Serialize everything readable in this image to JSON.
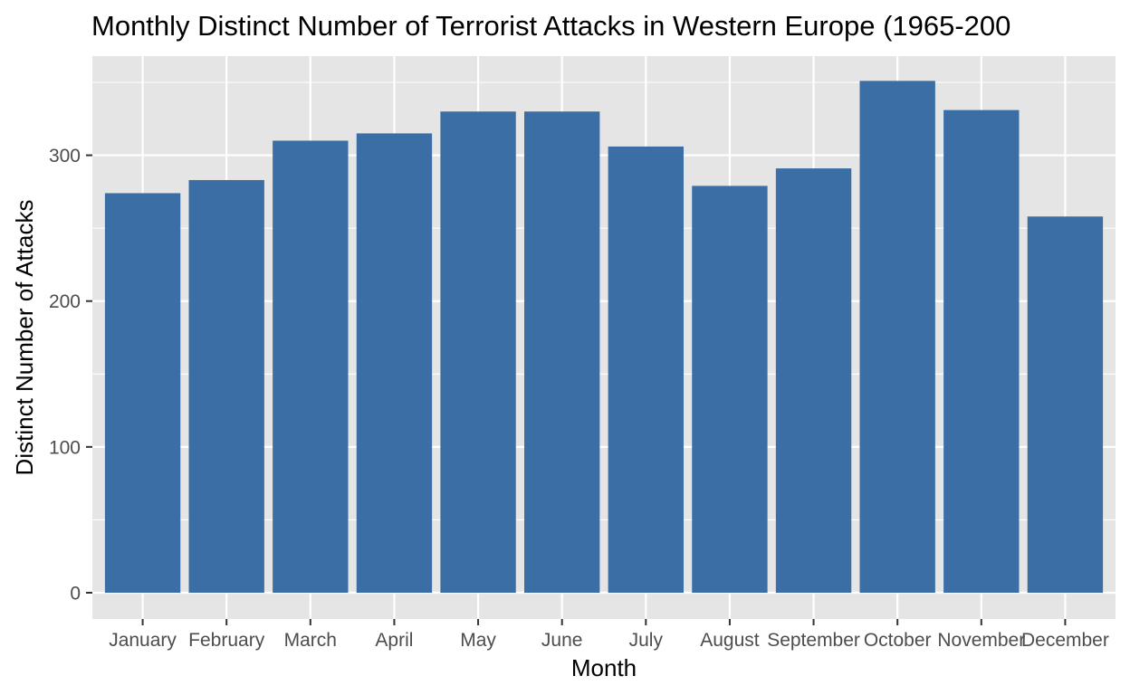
{
  "chart_data": {
    "type": "bar",
    "title": "Monthly Distinct Number of Terrorist Attacks in Western Europe (1965-200",
    "xlabel": "Month",
    "ylabel": "Distinct Number of Attacks",
    "categories": [
      "January",
      "February",
      "March",
      "April",
      "May",
      "June",
      "July",
      "August",
      "September",
      "October",
      "November",
      "December"
    ],
    "values": [
      274,
      283,
      310,
      315,
      330,
      330,
      306,
      279,
      291,
      351,
      331,
      258
    ],
    "yticks": [
      "0",
      "100",
      "200",
      "300"
    ],
    "ylim": [
      -18,
      368
    ],
    "grid": true,
    "legend": "none"
  },
  "colors": {
    "bar": "#3a6ea5",
    "panel_background": "#e5e5e5",
    "grid_line": "#ffffff",
    "tick_mark": "#333333"
  }
}
